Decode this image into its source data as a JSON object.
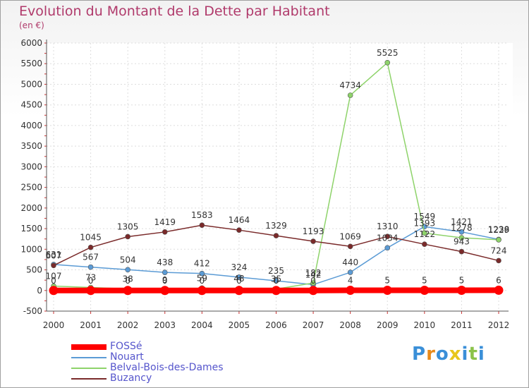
{
  "title": "Evolution du Montant de la Dette par Habitant",
  "unit_label": "(en €)",
  "logo": {
    "letters": [
      "P",
      "r",
      "o",
      "x",
      "i",
      "t",
      "i"
    ],
    "colors": [
      "#3a8fd8",
      "#e88a1a",
      "#3a8fd8",
      "#e8c61a",
      "#3a8fd8",
      "#8bc34a",
      "#3a8fd8"
    ]
  },
  "chart_data": {
    "type": "line",
    "title": "Evolution du Montant de la Dette par Habitant",
    "ylabel": "(en €)",
    "xlabel": "",
    "categories": [
      "2000",
      "2001",
      "2002",
      "2003",
      "2004",
      "2005",
      "2006",
      "2007",
      "2008",
      "2009",
      "2010",
      "2011",
      "2012"
    ],
    "ylim": [
      -500,
      6000
    ],
    "yticks": [
      -500,
      0,
      500,
      1000,
      1500,
      2000,
      2500,
      3000,
      3500,
      4000,
      4500,
      5000,
      5500,
      6000
    ],
    "series": [
      {
        "name": "FOSSé",
        "color": "#ff0000",
        "width": 8,
        "values": [
          0,
          0,
          0,
          0,
          0,
          0,
          0,
          0,
          4,
          5,
          5,
          5,
          6
        ],
        "labels": [
          "0",
          "0",
          "0",
          "0",
          "0",
          "0",
          "0",
          "0",
          "4",
          "5",
          "5",
          "5",
          "6"
        ]
      },
      {
        "name": "Nouart",
        "color": "#5b9bd5",
        "width": 1.5,
        "values": [
          631,
          567,
          504,
          438,
          412,
          324,
          235,
          142,
          440,
          1034,
          1549,
          1421,
          1238
        ],
        "labels": [
          "631",
          "567",
          "504",
          "438",
          "412",
          "324",
          "235",
          "142",
          "440",
          "1034",
          "1549",
          "1421",
          "1238"
        ]
      },
      {
        "name": "Belval-Bois-des-Dames",
        "color": "#8ed36a",
        "width": 1.5,
        "values": [
          107,
          73,
          38,
          9,
          59,
          48,
          35,
          182,
          4734,
          5525,
          1393,
          1278,
          1229
        ],
        "labels": [
          "107",
          "73",
          "38",
          "9",
          "59",
          "48",
          "35",
          "182",
          "4734",
          "5525",
          "1393",
          "1278",
          "1229"
        ]
      },
      {
        "name": "Buzancy",
        "color": "#7a2a2a",
        "width": 1.5,
        "values": [
          607,
          1045,
          1305,
          1419,
          1583,
          1464,
          1329,
          1193,
          1069,
          1310,
          1122,
          943,
          724
        ],
        "labels": [
          "607",
          "1045",
          "1305",
          "1419",
          "1583",
          "1464",
          "1329",
          "1193",
          "1069",
          "1310",
          "1122",
          "943",
          "724"
        ]
      }
    ]
  }
}
